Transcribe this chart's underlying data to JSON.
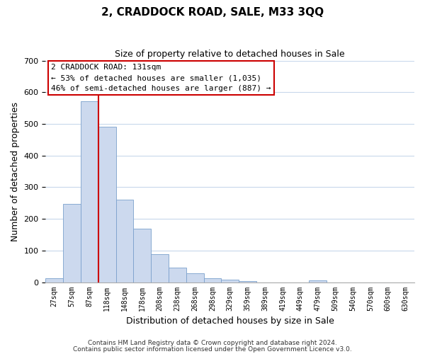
{
  "title": "2, CRADDOCK ROAD, SALE, M33 3QQ",
  "subtitle": "Size of property relative to detached houses in Sale",
  "xlabel": "Distribution of detached houses by size in Sale",
  "ylabel": "Number of detached properties",
  "bar_labels": [
    "27sqm",
    "57sqm",
    "87sqm",
    "118sqm",
    "148sqm",
    "178sqm",
    "208sqm",
    "238sqm",
    "268sqm",
    "298sqm",
    "329sqm",
    "359sqm",
    "389sqm",
    "419sqm",
    "449sqm",
    "479sqm",
    "509sqm",
    "540sqm",
    "570sqm",
    "600sqm",
    "630sqm"
  ],
  "bar_heights": [
    12,
    247,
    572,
    492,
    260,
    170,
    88,
    47,
    27,
    13,
    8,
    3,
    0,
    0,
    0,
    5,
    0,
    0,
    0,
    0,
    0
  ],
  "bar_color": "#ccd9ee",
  "bar_edge_color": "#7aa0cc",
  "vline_x": 3,
  "vline_color": "#cc0000",
  "ylim": [
    0,
    700
  ],
  "yticks": [
    0,
    100,
    200,
    300,
    400,
    500,
    600,
    700
  ],
  "annotation_title": "2 CRADDOCK ROAD: 131sqm",
  "annotation_line1": "← 53% of detached houses are smaller (1,035)",
  "annotation_line2": "46% of semi-detached houses are larger (887) →",
  "footer_line1": "Contains HM Land Registry data © Crown copyright and database right 2024.",
  "footer_line2": "Contains public sector information licensed under the Open Government Licence v3.0.",
  "background_color": "#ffffff",
  "grid_color": "#c8d8ec"
}
